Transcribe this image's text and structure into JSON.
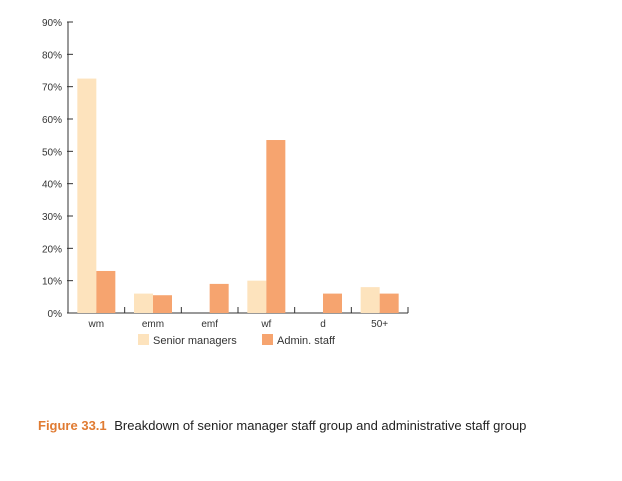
{
  "chart_data": {
    "type": "bar",
    "categories": [
      "wm",
      "emm",
      "emf",
      "wf",
      "d",
      "50+"
    ],
    "series": [
      {
        "name": "Senior managers",
        "color": "#fde3bd",
        "values": [
          72.5,
          6,
          0,
          10,
          0,
          8
        ]
      },
      {
        "name": "Admin. staff",
        "color": "#f6a46f",
        "values": [
          13,
          5.5,
          9,
          53.5,
          6,
          6
        ]
      }
    ],
    "y_ticks": [
      "0%",
      "10%",
      "20%",
      "30%",
      "40%",
      "50%",
      "60%",
      "70%",
      "80%",
      "90%"
    ],
    "ylim": [
      0,
      90
    ],
    "grid": false,
    "legend_position": "bottom"
  },
  "caption": {
    "label": "Figure 33.1",
    "text": "Breakdown of senior manager staff group and administrative staff group"
  }
}
